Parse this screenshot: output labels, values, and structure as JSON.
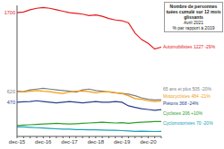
{
  "chart_data": {
    "type": "line",
    "title": "Nombre de personnes tuées cumulé sur 12 mois glissants",
    "subtitle": [
      "Avril 2021",
      "% par rapport à 2019"
    ],
    "categories": [
      "dec-15",
      null,
      null,
      null,
      "dec-16",
      null,
      null,
      null,
      "dec-17",
      null,
      null,
      null,
      "dec-18",
      null,
      null,
      null,
      "dec-19",
      null,
      null,
      null,
      "dec-20",
      null,
      null
    ],
    "ylim": [
      0,
      1800
    ],
    "tick_labels": "x",
    "grid": false,
    "series": [
      {
        "name": "Automobilistes",
        "color": "#e41a1c",
        "values": [
          1700,
          1710,
          1740,
          1760,
          1770,
          1760,
          1740,
          1720,
          1700,
          1690,
          1680,
          1660,
          1670,
          1650,
          1620,
          1600,
          1590,
          1560,
          1420,
          1330,
          1280,
          1200,
          1227
        ],
        "value_labels": [
          "1700",
          null,
          null,
          null,
          null,
          null,
          null,
          null,
          null,
          null,
          null,
          null,
          null,
          null,
          null,
          null,
          null,
          null,
          null,
          null,
          null,
          null,
          null
        ]
      },
      {
        "name": "65 ans et plus",
        "color": "#7f7f7f",
        "values": [
          620,
          615,
          640,
          650,
          660,
          650,
          640,
          630,
          620,
          610,
          640,
          650,
          630,
          620,
          610,
          600,
          590,
          580,
          560,
          530,
          510,
          500,
          505
        ],
        "value_labels": [
          "620",
          null,
          null,
          null,
          null,
          null,
          null,
          null,
          null,
          null,
          null,
          null,
          null,
          null,
          null,
          null,
          null,
          null,
          null,
          null,
          null,
          null,
          null
        ]
      },
      {
        "name": "Motocyclistes",
        "color": "#f39c12",
        "values": [
          615,
          610,
          620,
          630,
          620,
          615,
          600,
          590,
          610,
          620,
          625,
          615,
          600,
          610,
          615,
          600,
          590,
          560,
          520,
          510,
          490,
          480,
          484
        ]
      },
      {
        "name": "Piétons",
        "color": "#2c3e91",
        "values": [
          470,
          475,
          480,
          490,
          480,
          470,
          460,
          470,
          480,
          470,
          460,
          470,
          480,
          470,
          470,
          480,
          470,
          420,
          400,
          380,
          370,
          360,
          368
        ],
        "value_labels": [
          "470",
          null,
          null,
          null,
          null,
          null,
          null,
          null,
          null,
          null,
          null,
          null,
          null,
          null,
          null,
          null,
          null,
          null,
          null,
          null,
          null,
          null,
          null
        ]
      },
      {
        "name": "Cyclistes",
        "color": "#2ca02c",
        "values": [
          150,
          155,
          160,
          165,
          170,
          175,
          180,
          175,
          170,
          175,
          180,
          185,
          190,
          195,
          190,
          185,
          190,
          180,
          190,
          195,
          200,
          205,
          206
        ]
      },
      {
        "name": "Cyclomotoristes",
        "color": "#17a2b8",
        "values": [
          130,
          130,
          125,
          120,
          115,
          110,
          105,
          100,
          100,
          95,
          95,
          90,
          90,
          88,
          85,
          85,
          80,
          75,
          70,
          72,
          70,
          68,
          70
        ]
      }
    ],
    "annotations": [
      {
        "text": "Automobilistes 1227 -29%",
        "y": 1227,
        "color": "#e41a1c"
      },
      {
        "text": "65 ans et plus 505 -20%",
        "y": 650,
        "color": "#7f7f7f"
      },
      {
        "text": "Motocyclistes 484 -21%",
        "y": 550,
        "color": "#f39c12"
      },
      {
        "text": "Piétons 368 -24%",
        "y": 450,
        "color": "#2c3e91"
      },
      {
        "text": "Cyclistes 206 +10%",
        "y": 320,
        "color": "#2ca02c"
      },
      {
        "text": "Cyclomotoristes 70 -20%",
        "y": 180,
        "color": "#17a2b8"
      }
    ]
  }
}
